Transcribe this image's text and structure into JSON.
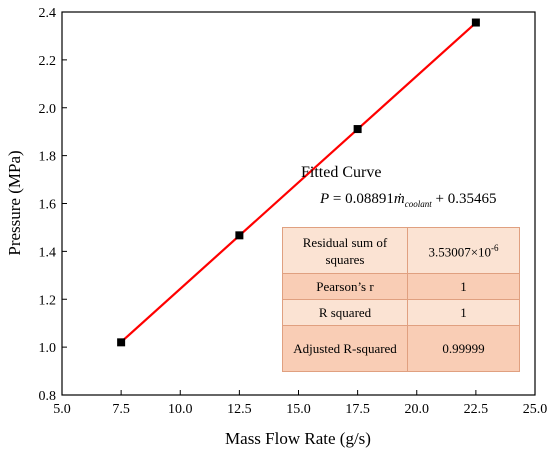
{
  "chart_data": {
    "type": "line",
    "xlabel": "Mass Flow Rate (g/s)",
    "ylabel": "Pressure (MPa)",
    "xlim": [
      5.0,
      25.0
    ],
    "ylim": [
      0.8,
      2.4
    ],
    "x_ticks": [
      "5.0",
      "7.5",
      "10.0",
      "12.5",
      "15.0",
      "17.5",
      "20.0",
      "22.5",
      "25.0"
    ],
    "y_ticks": [
      "0.8",
      "1.0",
      "1.2",
      "1.4",
      "1.6",
      "1.8",
      "2.0",
      "2.2",
      "2.4"
    ],
    "grid": false,
    "series": [
      {
        "type": "scatter",
        "marker": "square",
        "color": "#000000",
        "x": [
          7.5,
          12.5,
          17.5,
          22.5
        ],
        "y": [
          1.02,
          1.467,
          1.911,
          2.356
        ]
      },
      {
        "type": "line",
        "color": "#ff0000",
        "x": [
          7.5,
          22.5
        ],
        "y": [
          1.02139,
          2.35504
        ]
      }
    ],
    "annotations": {
      "fit_title": "Fitted Curve",
      "equation": {
        "lhs": "P",
        "op": " = 0.08891",
        "var": "ṁ",
        "sub": "coolant",
        "rest": " + 0.35465"
      },
      "table": [
        {
          "label": "Residual sum of squares",
          "value": "3.53007×10-6"
        },
        {
          "label": "Pearson’s r",
          "value": "1"
        },
        {
          "label": "R squared",
          "value": "1"
        },
        {
          "label": "Adjusted R-squared",
          "value": "0.99999"
        }
      ],
      "table_colors": {
        "odd": "#fbe3d3",
        "even": "#f9cdb5",
        "border": "#e0a080"
      }
    }
  }
}
